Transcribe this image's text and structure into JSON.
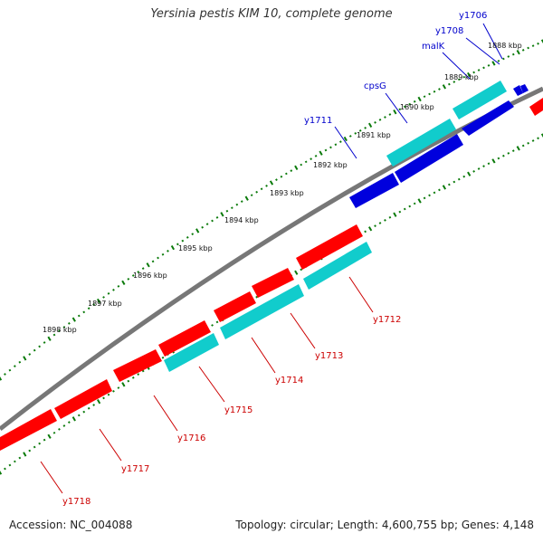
{
  "title": "Yersinia pestis KIM 10, complete genome",
  "footer": {
    "accession": "Accession: NC_004088",
    "info": "Topology: circular; Length: 4,600,755 bp; Genes: 4,148"
  },
  "colors": {
    "forward_gene": "#0000dd",
    "reverse_gene": "#ff0000",
    "cds_alt": "#11cccc",
    "backbone": "#777777",
    "tick": "#0a7a0a",
    "forward_label": "#0000cc",
    "reverse_label": "#cc0000"
  },
  "scale_labels": [
    "1888 kbp",
    "1889 kbp",
    "1890 kbp",
    "1891 kbp",
    "1892 kbp",
    "1893 kbp",
    "1894 kbp",
    "1895 kbp",
    "1896 kbp",
    "1897 kbp",
    "1898 kbp"
  ],
  "forward_genes": [
    {
      "label": "y1706"
    },
    {
      "label": "y1708"
    },
    {
      "label": "malK"
    },
    {
      "label": "cpsG"
    },
    {
      "label": "y1711"
    }
  ],
  "reverse_genes": [
    {
      "label": "y1712"
    },
    {
      "label": "y1713"
    },
    {
      "label": "y1714"
    },
    {
      "label": "y1715"
    },
    {
      "label": "y1716"
    },
    {
      "label": "y1717"
    },
    {
      "label": "y1718"
    }
  ]
}
